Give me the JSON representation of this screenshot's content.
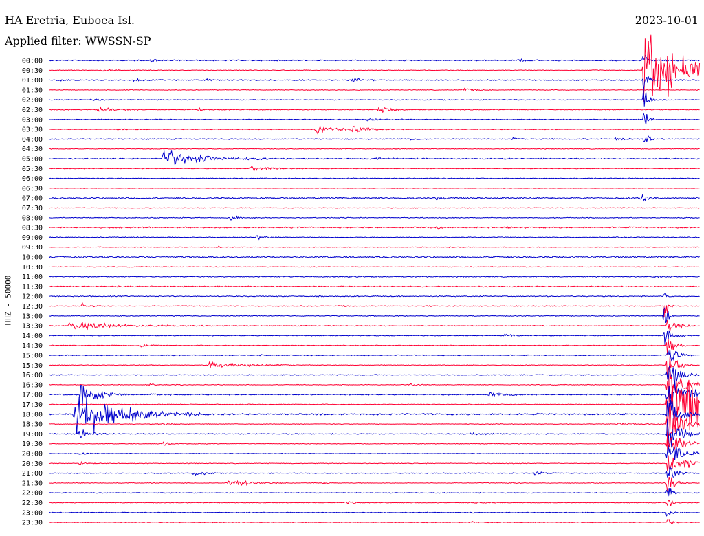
{
  "header": {
    "station": "HA Eretria, Euboea Isl.",
    "filter": "Applied filter: WWSSN-SP",
    "date": "2023-10-01",
    "channel": "HHZ - 50000"
  },
  "chart_data": {
    "type": "line",
    "title": "HA Eretria, Euboea Isl.",
    "subtitle": "Applied filter: WWSSN-SP",
    "ylabel": "HHZ - 50000",
    "date": "2023-10-01",
    "colors": {
      "odd": "#0000cc",
      "even": "#ff0033"
    },
    "rows": [
      {
        "label": "00:00",
        "noise": 0.8,
        "events": [
          {
            "pos": 0.155,
            "amp": 3,
            "len": 0.012
          },
          {
            "pos": 0.72,
            "amp": 3,
            "len": 0.01
          },
          {
            "pos": 0.913,
            "amp": 30,
            "len": 0.005
          }
        ]
      },
      {
        "label": "00:30",
        "noise": 0.5,
        "events": [
          {
            "pos": 0.08,
            "amp": 2,
            "len": 0.015
          },
          {
            "pos": 0.913,
            "amp": 90,
            "len": 0.05
          }
        ]
      },
      {
        "label": "01:00",
        "noise": 0.8,
        "events": [
          {
            "pos": 0.015,
            "amp": 2,
            "len": 0.006
          },
          {
            "pos": 0.13,
            "amp": 3,
            "len": 0.01
          },
          {
            "pos": 0.24,
            "amp": 3,
            "len": 0.01
          },
          {
            "pos": 0.465,
            "amp": 4,
            "len": 0.012
          },
          {
            "pos": 0.913,
            "amp": 25,
            "len": 0.005
          }
        ]
      },
      {
        "label": "01:30",
        "noise": 0.5,
        "events": [
          {
            "pos": 0.635,
            "amp": 5,
            "len": 0.012
          }
        ]
      },
      {
        "label": "02:00",
        "noise": 0.6,
        "events": [
          {
            "pos": 0.065,
            "amp": 2.5,
            "len": 0.012
          },
          {
            "pos": 0.913,
            "amp": 30,
            "len": 0.005
          }
        ]
      },
      {
        "label": "02:30",
        "noise": 0.6,
        "events": [
          {
            "pos": 0.075,
            "amp": 6,
            "len": 0.018
          },
          {
            "pos": 0.23,
            "amp": 2,
            "len": 0.008
          },
          {
            "pos": 0.505,
            "amp": 6,
            "len": 0.02
          }
        ]
      },
      {
        "label": "03:00",
        "noise": 0.6,
        "events": [
          {
            "pos": 0.485,
            "amp": 2.5,
            "len": 0.02
          },
          {
            "pos": 0.913,
            "amp": 25,
            "len": 0.005
          }
        ]
      },
      {
        "label": "03:30",
        "noise": 0.5,
        "events": [
          {
            "pos": 0.105,
            "amp": 1.5,
            "len": 0.012
          },
          {
            "pos": 0.41,
            "amp": 10,
            "len": 0.02
          },
          {
            "pos": 0.465,
            "amp": 6,
            "len": 0.02
          }
        ]
      },
      {
        "label": "04:00",
        "noise": 0.7,
        "events": [
          {
            "pos": 0.555,
            "amp": 2,
            "len": 0.008
          },
          {
            "pos": 0.712,
            "amp": 4,
            "len": 0.008
          },
          {
            "pos": 0.87,
            "amp": 2,
            "len": 0.015
          },
          {
            "pos": 0.915,
            "amp": 20,
            "len": 0.005
          }
        ]
      },
      {
        "label": "04:30",
        "noise": 0.5,
        "events": []
      },
      {
        "label": "05:00",
        "noise": 0.8,
        "events": [
          {
            "pos": 0.175,
            "amp": 18,
            "len": 0.045
          },
          {
            "pos": 0.3,
            "amp": 2.5,
            "len": 0.02
          },
          {
            "pos": 0.5,
            "amp": 2,
            "len": 0.02
          },
          {
            "pos": 0.56,
            "amp": 1.5,
            "len": 0.012
          }
        ]
      },
      {
        "label": "05:30",
        "noise": 0.5,
        "events": [
          {
            "pos": 0.31,
            "amp": 6,
            "len": 0.018
          }
        ]
      },
      {
        "label": "06:00",
        "noise": 0.6,
        "events": []
      },
      {
        "label": "06:30",
        "noise": 0.4,
        "events": []
      },
      {
        "label": "07:00",
        "noise": 1.0,
        "events": [
          {
            "pos": 0.595,
            "amp": 7,
            "len": 0.004
          },
          {
            "pos": 0.91,
            "amp": 9,
            "len": 0.008
          }
        ]
      },
      {
        "label": "07:30",
        "noise": 0.5,
        "events": []
      },
      {
        "label": "08:00",
        "noise": 0.6,
        "events": [
          {
            "pos": 0.278,
            "amp": 5,
            "len": 0.01
          }
        ]
      },
      {
        "label": "08:30",
        "noise": 0.9,
        "events": [
          {
            "pos": 0.595,
            "amp": 2,
            "len": 0.008
          },
          {
            "pos": 0.7,
            "amp": 2,
            "len": 0.008
          }
        ]
      },
      {
        "label": "09:00",
        "noise": 0.6,
        "events": [
          {
            "pos": 0.318,
            "amp": 5,
            "len": 0.01
          }
        ]
      },
      {
        "label": "09:30",
        "noise": 0.5,
        "events": [
          {
            "pos": 0.258,
            "amp": 1.5,
            "len": 0.005
          },
          {
            "pos": 0.615,
            "amp": 1.5,
            "len": 0.005
          }
        ]
      },
      {
        "label": "10:00",
        "noise": 1.1,
        "events": []
      },
      {
        "label": "10:30",
        "noise": 0.5,
        "events": []
      },
      {
        "label": "11:00",
        "noise": 0.7,
        "events": [
          {
            "pos": 0.46,
            "amp": 2,
            "len": 0.02
          },
          {
            "pos": 0.93,
            "amp": 2,
            "len": 0.01
          }
        ]
      },
      {
        "label": "11:30",
        "noise": 0.8,
        "events": []
      },
      {
        "label": "12:00",
        "noise": 0.7,
        "events": [
          {
            "pos": 0.945,
            "amp": 10,
            "len": 0.004
          }
        ]
      },
      {
        "label": "12:30",
        "noise": 0.6,
        "events": [
          {
            "pos": 0.05,
            "amp": 5,
            "len": 0.012
          },
          {
            "pos": 0.445,
            "amp": 2,
            "len": 0.008
          },
          {
            "pos": 0.58,
            "amp": 1.5,
            "len": 0.008
          },
          {
            "pos": 0.945,
            "amp": 50,
            "len": 0.004
          }
        ]
      },
      {
        "label": "13:00",
        "noise": 0.6,
        "events": [
          {
            "pos": 0.945,
            "amp": 40,
            "len": 0.004
          }
        ]
      },
      {
        "label": "13:30",
        "noise": 0.6,
        "events": [
          {
            "pos": 0.03,
            "amp": 8,
            "len": 0.06
          },
          {
            "pos": 0.95,
            "amp": 30,
            "len": 0.01
          }
        ]
      },
      {
        "label": "14:00",
        "noise": 0.6,
        "events": [
          {
            "pos": 0.7,
            "amp": 5,
            "len": 0.008
          },
          {
            "pos": 0.945,
            "amp": 20,
            "len": 0.01
          }
        ]
      },
      {
        "label": "14:30",
        "noise": 0.5,
        "events": [
          {
            "pos": 0.14,
            "amp": 4,
            "len": 0.01
          },
          {
            "pos": 0.95,
            "amp": 20,
            "len": 0.01
          }
        ]
      },
      {
        "label": "15:00",
        "noise": 0.6,
        "events": [
          {
            "pos": 0.325,
            "amp": 3,
            "len": 0.004
          },
          {
            "pos": 0.95,
            "amp": 25,
            "len": 0.01
          }
        ]
      },
      {
        "label": "15:30",
        "noise": 0.5,
        "events": [
          {
            "pos": 0.245,
            "amp": 6,
            "len": 0.05
          },
          {
            "pos": 0.95,
            "amp": 40,
            "len": 0.01
          }
        ]
      },
      {
        "label": "16:00",
        "noise": 0.6,
        "events": [
          {
            "pos": 0.5,
            "amp": 2,
            "len": 0.005
          },
          {
            "pos": 0.95,
            "amp": 30,
            "len": 0.015
          }
        ]
      },
      {
        "label": "16:30",
        "noise": 0.5,
        "events": [
          {
            "pos": 0.15,
            "amp": 2,
            "len": 0.015
          },
          {
            "pos": 0.555,
            "amp": 2,
            "len": 0.012
          },
          {
            "pos": 0.95,
            "amp": 50,
            "len": 0.02
          }
        ]
      },
      {
        "label": "17:00",
        "noise": 0.8,
        "events": [
          {
            "pos": 0.048,
            "amp": 30,
            "len": 0.02
          },
          {
            "pos": 0.155,
            "amp": 4,
            "len": 0.015
          },
          {
            "pos": 0.675,
            "amp": 4,
            "len": 0.025
          },
          {
            "pos": 0.95,
            "amp": 30,
            "len": 0.03
          }
        ]
      },
      {
        "label": "17:30",
        "noise": 0.5,
        "events": [
          {
            "pos": 0.95,
            "amp": 90,
            "len": 0.06
          }
        ]
      },
      {
        "label": "18:00",
        "noise": 1.1,
        "events": [
          {
            "pos": 0.038,
            "amp": 50,
            "len": 0.05
          },
          {
            "pos": 0.12,
            "amp": 4,
            "len": 0.02
          },
          {
            "pos": 0.21,
            "amp": 3,
            "len": 0.02
          },
          {
            "pos": 0.95,
            "amp": 30,
            "len": 0.02
          }
        ]
      },
      {
        "label": "18:30",
        "noise": 0.5,
        "events": [
          {
            "pos": 0.175,
            "amp": 2,
            "len": 0.01
          },
          {
            "pos": 0.87,
            "amp": 2,
            "len": 0.03
          },
          {
            "pos": 0.95,
            "amp": 40,
            "len": 0.02
          }
        ]
      },
      {
        "label": "19:00",
        "noise": 0.7,
        "events": [
          {
            "pos": 0.045,
            "amp": 12,
            "len": 0.015
          },
          {
            "pos": 0.64,
            "amp": 2,
            "len": 0.02
          },
          {
            "pos": 0.95,
            "amp": 30,
            "len": 0.02
          }
        ]
      },
      {
        "label": "19:30",
        "noise": 0.5,
        "events": [
          {
            "pos": 0.175,
            "amp": 4,
            "len": 0.008
          },
          {
            "pos": 0.95,
            "amp": 30,
            "len": 0.02
          }
        ]
      },
      {
        "label": "20:00",
        "noise": 0.5,
        "events": [
          {
            "pos": 0.045,
            "amp": 2,
            "len": 0.015
          },
          {
            "pos": 0.95,
            "amp": 25,
            "len": 0.02
          }
        ]
      },
      {
        "label": "20:30",
        "noise": 0.5,
        "events": [
          {
            "pos": 0.045,
            "amp": 4,
            "len": 0.01
          },
          {
            "pos": 0.975,
            "amp": 10,
            "len": 0.02
          },
          {
            "pos": 0.95,
            "amp": 30,
            "len": 0.01
          }
        ]
      },
      {
        "label": "21:00",
        "noise": 0.6,
        "events": [
          {
            "pos": 0.222,
            "amp": 6,
            "len": 0.015
          },
          {
            "pos": 0.745,
            "amp": 4,
            "len": 0.012
          },
          {
            "pos": 0.95,
            "amp": 20,
            "len": 0.01
          }
        ]
      },
      {
        "label": "21:30",
        "noise": 0.5,
        "events": [
          {
            "pos": 0.275,
            "amp": 9,
            "len": 0.025
          },
          {
            "pos": 0.42,
            "amp": 2,
            "len": 0.008
          },
          {
            "pos": 0.71,
            "amp": 2,
            "len": 0.008
          },
          {
            "pos": 0.95,
            "amp": 20,
            "len": 0.01
          }
        ]
      },
      {
        "label": "22:00",
        "noise": 0.6,
        "events": [
          {
            "pos": 0.95,
            "amp": 20,
            "len": 0.005
          }
        ]
      },
      {
        "label": "22:30",
        "noise": 0.5,
        "events": [
          {
            "pos": 0.455,
            "amp": 3,
            "len": 0.01
          },
          {
            "pos": 0.655,
            "amp": 2,
            "len": 0.01
          },
          {
            "pos": 0.95,
            "amp": 20,
            "len": 0.005
          }
        ]
      },
      {
        "label": "23:00",
        "noise": 0.6,
        "events": [
          {
            "pos": 0.645,
            "amp": 3,
            "len": 0.005
          },
          {
            "pos": 0.95,
            "amp": 15,
            "len": 0.005
          }
        ]
      },
      {
        "label": "23:30",
        "noise": 0.5,
        "events": [
          {
            "pos": 0.65,
            "amp": 2,
            "len": 0.005
          },
          {
            "pos": 0.95,
            "amp": 15,
            "len": 0.005
          }
        ]
      }
    ]
  }
}
